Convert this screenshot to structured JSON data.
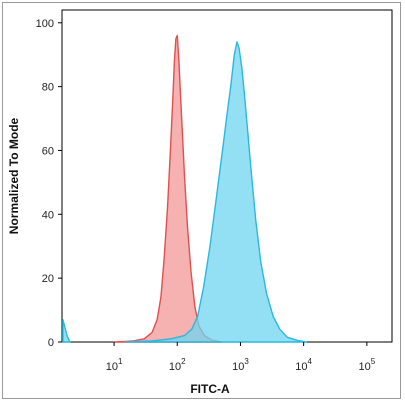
{
  "chart_data": {
    "type": "area",
    "title": "",
    "xlabel": "FITC-A",
    "ylabel": "Normalized To Mode",
    "x_scale": "log",
    "xlim": [
      1.5,
      250000
    ],
    "ylim": [
      0,
      104
    ],
    "x_ticks": [
      {
        "value": 10,
        "base": "10",
        "exp": "1"
      },
      {
        "value": 100,
        "base": "10",
        "exp": "2"
      },
      {
        "value": 1000,
        "base": "10",
        "exp": "3"
      },
      {
        "value": 10000,
        "base": "10",
        "exp": "4"
      },
      {
        "value": 100000,
        "base": "10",
        "exp": "5"
      }
    ],
    "y_ticks": [
      {
        "value": 0,
        "label": "0"
      },
      {
        "value": 20,
        "label": "20"
      },
      {
        "value": 40,
        "label": "40"
      },
      {
        "value": 60,
        "label": "60"
      },
      {
        "value": 80,
        "label": "80"
      },
      {
        "value": 100,
        "label": "100"
      }
    ],
    "grid": false,
    "legend": "none",
    "series": [
      {
        "fill": "#f5a3a3",
        "stroke": "#e05050",
        "opacity": 0.85,
        "points": [
          [
            10,
            0
          ],
          [
            20,
            0.3
          ],
          [
            30,
            1
          ],
          [
            40,
            3
          ],
          [
            48,
            7
          ],
          [
            55,
            14
          ],
          [
            62,
            26
          ],
          [
            70,
            42
          ],
          [
            78,
            60
          ],
          [
            85,
            76
          ],
          [
            90,
            88
          ],
          [
            95,
            95
          ],
          [
            100,
            96
          ],
          [
            106,
            88
          ],
          [
            112,
            78
          ],
          [
            120,
            66
          ],
          [
            130,
            52
          ],
          [
            145,
            36
          ],
          [
            165,
            22
          ],
          [
            190,
            11
          ],
          [
            220,
            5
          ],
          [
            270,
            2
          ],
          [
            350,
            0.6
          ],
          [
            500,
            0
          ]
        ]
      },
      {
        "fill": "#6fd6f0",
        "stroke": "#2bb8dc",
        "opacity": 0.75,
        "points": [
          [
            15,
            0
          ],
          [
            40,
            0.3
          ],
          [
            80,
            1
          ],
          [
            130,
            2
          ],
          [
            170,
            4
          ],
          [
            210,
            8
          ],
          [
            260,
            17
          ],
          [
            330,
            30
          ],
          [
            420,
            46
          ],
          [
            520,
            60
          ],
          [
            620,
            72
          ],
          [
            700,
            80
          ],
          [
            800,
            90
          ],
          [
            880,
            94
          ],
          [
            950,
            92
          ],
          [
            1050,
            86
          ],
          [
            1150,
            78
          ],
          [
            1300,
            66
          ],
          [
            1500,
            52
          ],
          [
            1750,
            38
          ],
          [
            2100,
            25
          ],
          [
            2600,
            15
          ],
          [
            3300,
            8
          ],
          [
            4200,
            4
          ],
          [
            5500,
            1.5
          ],
          [
            8000,
            0.5
          ],
          [
            11000,
            0
          ]
        ]
      },
      {
        "fill": "#6fd6f0",
        "stroke": "#2bb8dc",
        "opacity": 0.75,
        "points": [
          [
            1.55,
            0
          ],
          [
            1.55,
            7
          ],
          [
            1.65,
            5
          ],
          [
            1.8,
            2
          ],
          [
            2.0,
            0
          ]
        ]
      }
    ]
  }
}
